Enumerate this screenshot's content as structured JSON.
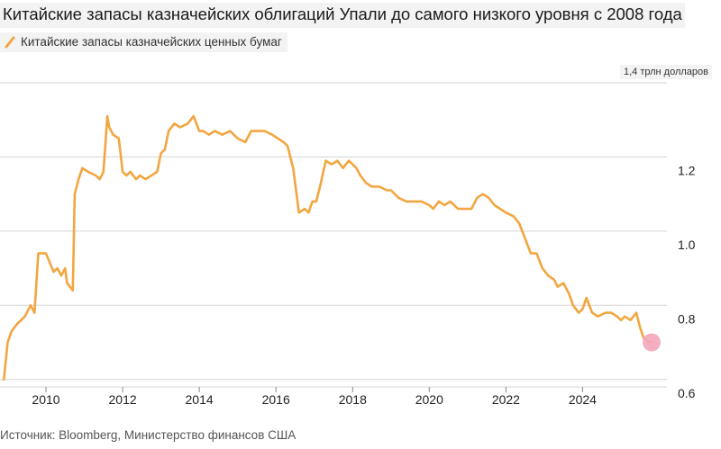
{
  "title": "Китайские запасы казначейских облигаций Упали до самого низкого уровня с 2008 года",
  "legend_label": "Китайские запасы казначейских ценных бумаг",
  "unit_label": "1,4 трлн долларов",
  "source": "Источник: Bloomberg, Министерство финансов США",
  "colors": {
    "line": "#f2a640",
    "highlight": "#f4a6bd",
    "grid": "#d4d4d4"
  },
  "chart_data": {
    "type": "line",
    "title": "Китайские запасы казначейских облигаций Упали до самого низкого уровня с 2008 года",
    "ylabel": "1,4 трлн долларов",
    "xlim": [
      2008.8,
      2026.2
    ],
    "ylim": [
      0.58,
      1.4
    ],
    "yticks": [
      0.6,
      0.8,
      1.0,
      1.2
    ],
    "ytick_labels": [
      "0.6",
      "0.8",
      "1.0",
      "1.2"
    ],
    "xticks": [
      2010,
      2012,
      2014,
      2016,
      2018,
      2020,
      2022,
      2024
    ],
    "xtick_labels": [
      "2010",
      "2012",
      "2014",
      "2016",
      "2018",
      "2020",
      "2022",
      "2024"
    ],
    "grid": true,
    "series": [
      {
        "name": "Китайские запасы казначейских ценных бумаг",
        "x": [
          2008.9,
          2009.0,
          2009.1,
          2009.25,
          2009.45,
          2009.6,
          2009.7,
          2009.8,
          2009.9,
          2010.0,
          2010.2,
          2010.3,
          2010.4,
          2010.5,
          2010.55,
          2010.7,
          2010.75,
          2010.85,
          2010.95,
          2011.1,
          2011.3,
          2011.4,
          2011.5,
          2011.6,
          2011.65,
          2011.75,
          2011.9,
          2012.0,
          2012.1,
          2012.2,
          2012.35,
          2012.45,
          2012.6,
          2012.75,
          2012.9,
          2013.0,
          2013.1,
          2013.2,
          2013.35,
          2013.5,
          2013.7,
          2013.85,
          2014.0,
          2014.1,
          2014.25,
          2014.4,
          2014.6,
          2014.8,
          2015.0,
          2015.2,
          2015.35,
          2015.5,
          2015.7,
          2015.9,
          2016.2,
          2016.3,
          2016.45,
          2016.6,
          2016.75,
          2016.85,
          2016.95,
          2017.05,
          2017.15,
          2017.3,
          2017.45,
          2017.6,
          2017.75,
          2017.9,
          2018.1,
          2018.2,
          2018.35,
          2018.5,
          2018.7,
          2018.9,
          2019.0,
          2019.2,
          2019.4,
          2019.6,
          2019.8,
          2020.0,
          2020.1,
          2020.25,
          2020.4,
          2020.55,
          2020.75,
          2020.95,
          2021.1,
          2021.25,
          2021.4,
          2021.55,
          2021.7,
          2021.85,
          2022.0,
          2022.2,
          2022.35,
          2022.5,
          2022.65,
          2022.8,
          2022.95,
          2023.1,
          2023.25,
          2023.35,
          2023.5,
          2023.65,
          2023.75,
          2023.9,
          2024.0,
          2024.1,
          2024.25,
          2024.4,
          2024.6,
          2024.75,
          2024.9,
          2025.0,
          2025.1,
          2025.25,
          2025.4,
          2025.5,
          2025.6,
          2025.75,
          2025.8
        ],
        "values": [
          0.6,
          0.7,
          0.73,
          0.75,
          0.77,
          0.8,
          0.78,
          0.94,
          0.94,
          0.94,
          0.89,
          0.9,
          0.88,
          0.9,
          0.86,
          0.84,
          1.1,
          1.14,
          1.17,
          1.16,
          1.15,
          1.14,
          1.16,
          1.31,
          1.28,
          1.26,
          1.25,
          1.16,
          1.15,
          1.16,
          1.14,
          1.15,
          1.14,
          1.15,
          1.16,
          1.21,
          1.22,
          1.27,
          1.29,
          1.28,
          1.29,
          1.31,
          1.27,
          1.27,
          1.26,
          1.27,
          1.26,
          1.27,
          1.25,
          1.24,
          1.27,
          1.27,
          1.27,
          1.26,
          1.24,
          1.23,
          1.17,
          1.05,
          1.06,
          1.05,
          1.08,
          1.08,
          1.12,
          1.19,
          1.18,
          1.19,
          1.17,
          1.19,
          1.17,
          1.15,
          1.13,
          1.12,
          1.12,
          1.11,
          1.11,
          1.09,
          1.08,
          1.08,
          1.08,
          1.07,
          1.06,
          1.08,
          1.07,
          1.08,
          1.06,
          1.06,
          1.06,
          1.09,
          1.1,
          1.09,
          1.07,
          1.06,
          1.05,
          1.04,
          1.02,
          0.98,
          0.94,
          0.94,
          0.9,
          0.88,
          0.87,
          0.85,
          0.86,
          0.83,
          0.8,
          0.78,
          0.79,
          0.82,
          0.78,
          0.77,
          0.78,
          0.78,
          0.77,
          0.76,
          0.77,
          0.76,
          0.78,
          0.74,
          0.71,
          0.7,
          0.7
        ],
        "highlight_last": true
      }
    ]
  }
}
